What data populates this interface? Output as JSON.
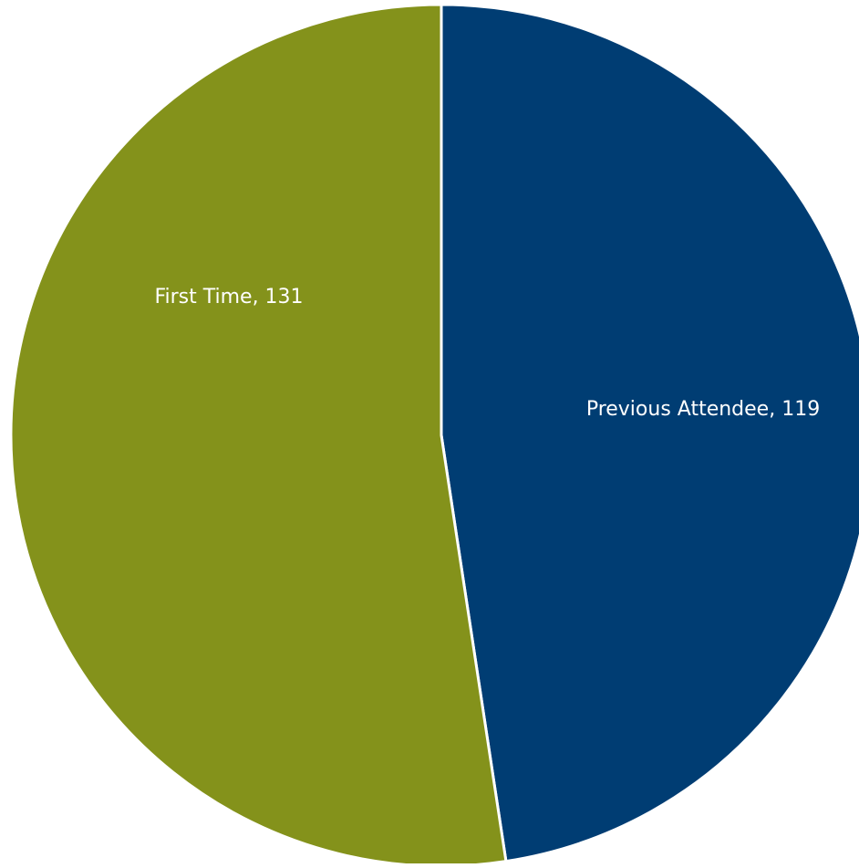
{
  "chart_data": {
    "type": "pie",
    "slices": [
      {
        "label": "Previous Attendee",
        "value": 119,
        "color": "#003d73",
        "data_label": "Previous Attendee, 119"
      },
      {
        "label": "First Time",
        "value": 131,
        "color": "#84921b",
        "data_label": "First Time, 131"
      }
    ],
    "start_angle": "12 o'clock",
    "direction": "clockwise",
    "legend": "none",
    "slice_separator_color": "#ffffff"
  }
}
